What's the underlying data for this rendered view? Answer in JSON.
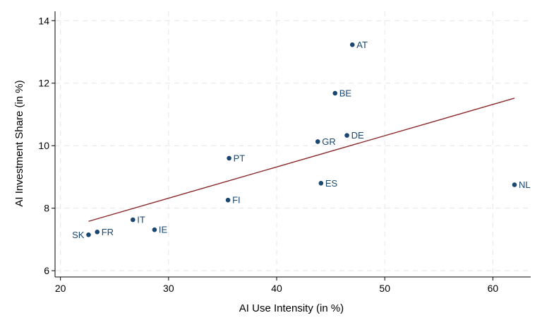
{
  "chart_data": {
    "type": "scatter",
    "title": "",
    "xlabel": "AI Use Intensity (in %)",
    "ylabel": "AI Investment Share (in %)",
    "xlim": [
      19.5,
      63.5
    ],
    "ylim": [
      5.8,
      14.3
    ],
    "xticks": [
      20,
      30,
      40,
      50,
      60
    ],
    "yticks": [
      6,
      8,
      10,
      12,
      14
    ],
    "grid": true,
    "colors": {
      "points": "#1a476f",
      "fit_line": "#8b2a2a",
      "labels": "#1a476f"
    },
    "points": [
      {
        "label": "AT",
        "x": 47.0,
        "y": 13.23
      },
      {
        "label": "BE",
        "x": 45.4,
        "y": 11.68
      },
      {
        "label": "DE",
        "x": 46.5,
        "y": 10.33
      },
      {
        "label": "GR",
        "x": 43.8,
        "y": 10.13
      },
      {
        "label": "PT",
        "x": 35.6,
        "y": 9.6
      },
      {
        "label": "ES",
        "x": 44.1,
        "y": 8.8
      },
      {
        "label": "NL",
        "x": 62.0,
        "y": 8.75
      },
      {
        "label": "FI",
        "x": 35.5,
        "y": 8.26
      },
      {
        "label": "IT",
        "x": 26.7,
        "y": 7.63
      },
      {
        "label": "IE",
        "x": 28.7,
        "y": 7.31
      },
      {
        "label": "FR",
        "x": 23.4,
        "y": 7.24
      },
      {
        "label": "SK",
        "x": 22.6,
        "y": 7.15
      }
    ],
    "fit_line": {
      "x": [
        22.6,
        62.0
      ],
      "y": [
        7.58,
        11.52
      ]
    }
  }
}
